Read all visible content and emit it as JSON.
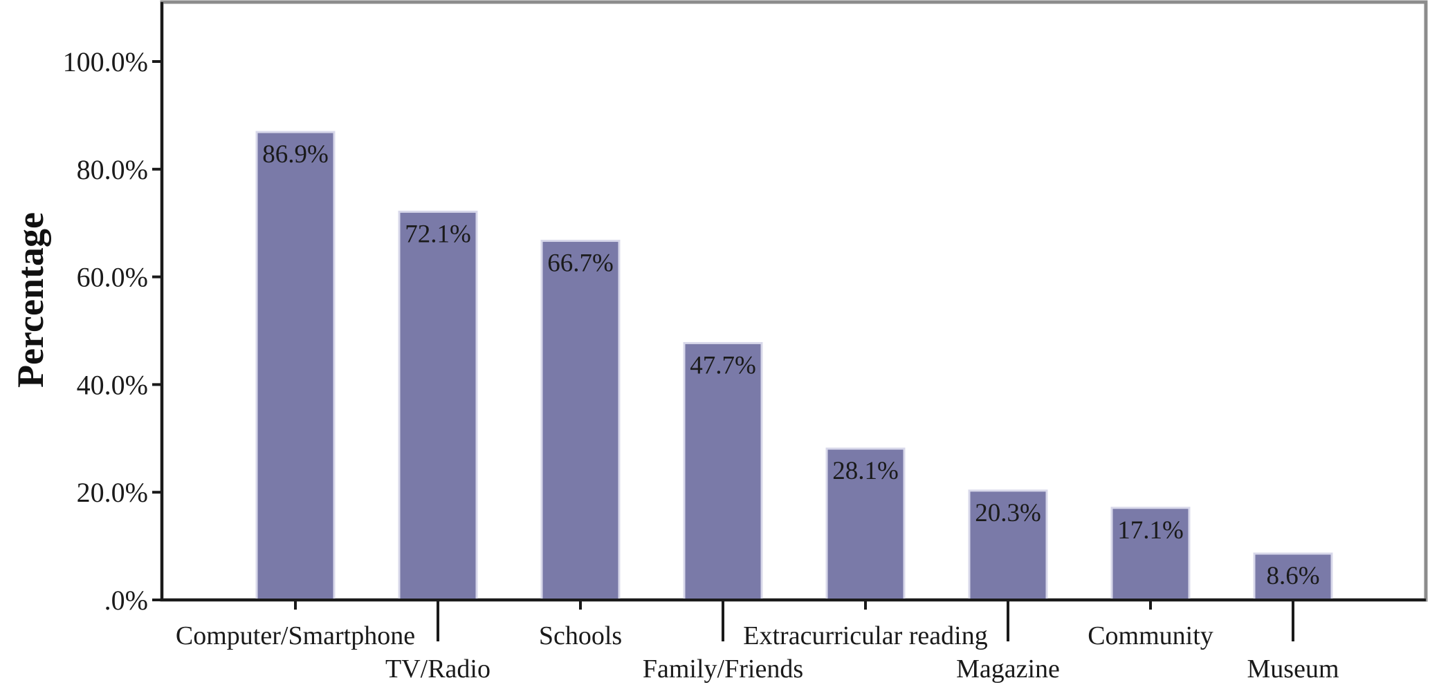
{
  "chart_data": {
    "type": "bar",
    "title": "",
    "xlabel": "",
    "ylabel": "Percentage",
    "ylim": [
      0,
      110
    ],
    "yticks": [
      0,
      20,
      40,
      60,
      80,
      100
    ],
    "ytick_labels": [
      ".0%",
      "20.0%",
      "40.0%",
      "60.0%",
      "80.0%",
      "100.0%"
    ],
    "categories": [
      "Computer/Smartphone",
      "TV/Radio",
      "Schools",
      "Family/Friends",
      "Extracurricular reading",
      "Magazine",
      "Community",
      "Museum"
    ],
    "values": [
      86.9,
      72.1,
      66.7,
      47.7,
      28.1,
      20.3,
      17.1,
      8.6
    ],
    "data_labels": [
      "86.9%",
      "72.1%",
      "66.7%",
      "47.7%",
      "28.1%",
      "20.3%",
      "17.1%",
      "8.6%"
    ],
    "bar_color": "#7a7aa8",
    "bar_edge_color": "#d8d8ea",
    "axis_color": "#1a1a1a",
    "frame_color": "#8c8c8c",
    "grid": false,
    "legend": "none"
  }
}
